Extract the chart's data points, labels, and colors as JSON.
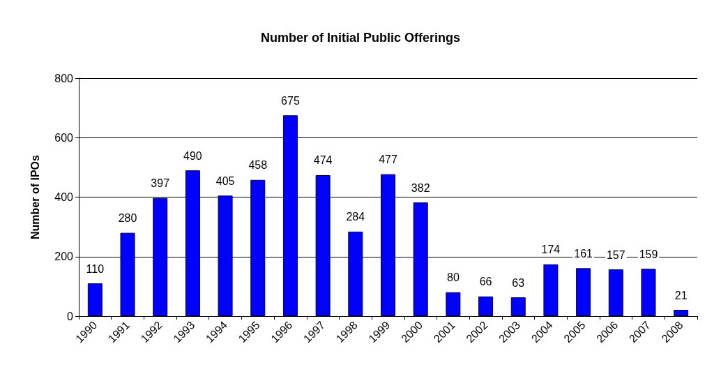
{
  "chart_data": {
    "type": "bar",
    "title": "Number of Initial Public Offerings",
    "ylabel": "Number of IPOs",
    "categories": [
      "1990",
      "1991",
      "1992",
      "1993",
      "1994",
      "1995",
      "1996",
      "1997",
      "1998",
      "1999",
      "2000",
      "2001",
      "2002",
      "2003",
      "2004",
      "2005",
      "2006",
      "2007",
      "2008"
    ],
    "values": [
      110,
      280,
      397,
      490,
      405,
      458,
      675,
      474,
      284,
      477,
      382,
      80,
      66,
      63,
      174,
      161,
      157,
      159,
      21
    ],
    "color": "#0000ff",
    "ylim": [
      0,
      800
    ],
    "yticks": [
      0,
      200,
      400,
      600,
      800
    ],
    "grid": "y",
    "data_labels": true
  }
}
